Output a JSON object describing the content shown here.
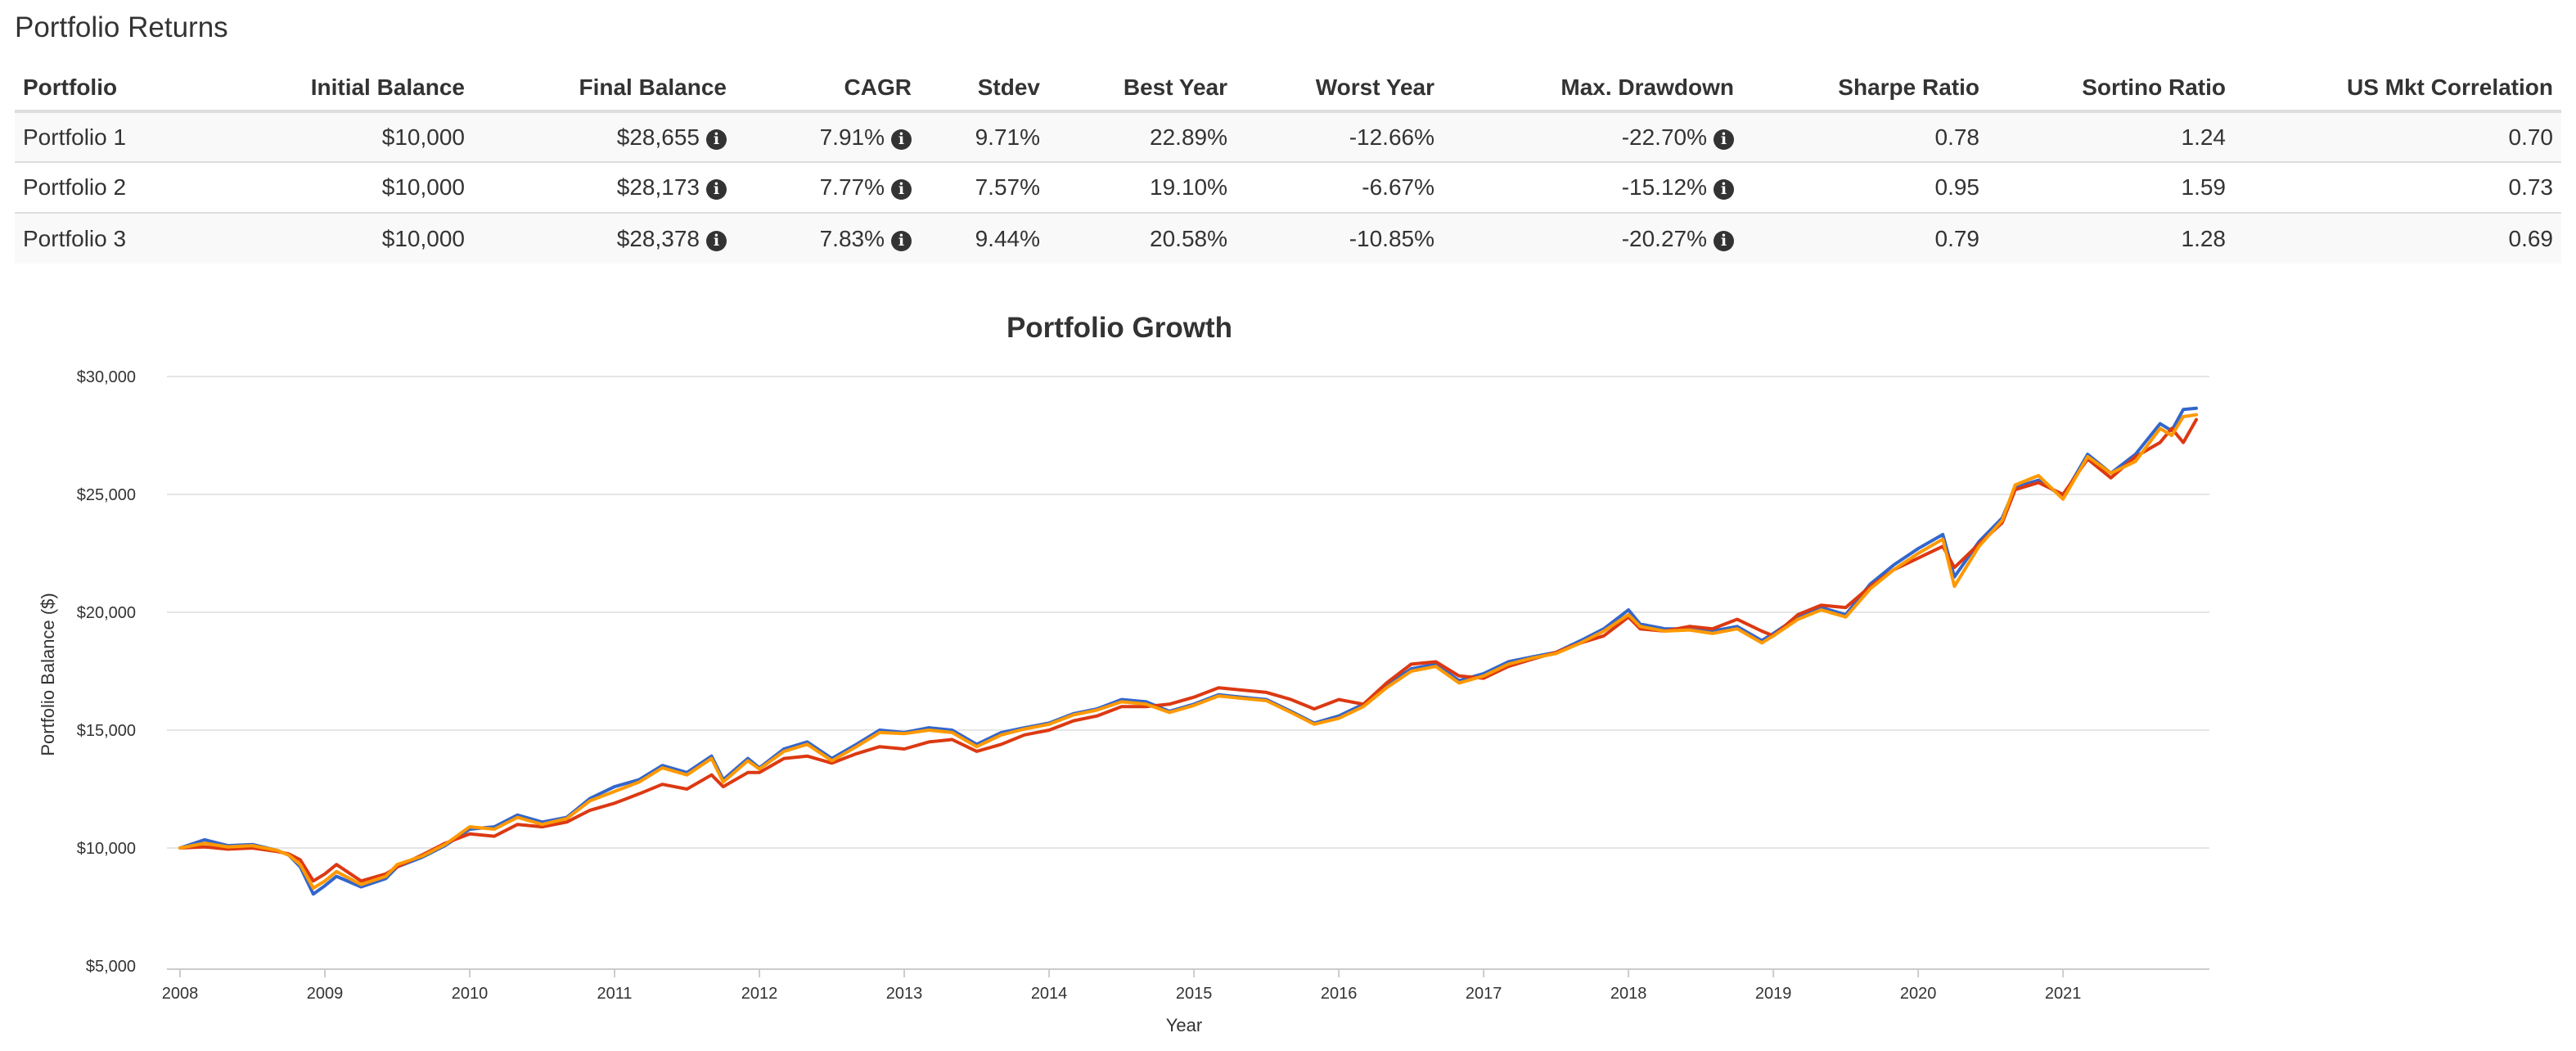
{
  "page": {
    "section_title": "Portfolio Returns"
  },
  "table": {
    "headers": [
      "Portfolio",
      "Initial Balance",
      "Final Balance",
      "CAGR",
      "Stdev",
      "Best Year",
      "Worst Year",
      "Max. Drawdown",
      "Sharpe Ratio",
      "Sortino Ratio",
      "US Mkt Correlation"
    ],
    "info_icon": "info-circle-icon",
    "rows": [
      {
        "portfolio": "Portfolio 1",
        "initial": "$10,000",
        "final": "$28,655",
        "cagr": "7.91%",
        "stdev": "9.71%",
        "best": "22.89%",
        "worst": "-12.66%",
        "drawdown": "-22.70%",
        "sharpe": "0.78",
        "sortino": "1.24",
        "corr": "0.70"
      },
      {
        "portfolio": "Portfolio 2",
        "initial": "$10,000",
        "final": "$28,173",
        "cagr": "7.77%",
        "stdev": "7.57%",
        "best": "19.10%",
        "worst": "-6.67%",
        "drawdown": "-15.12%",
        "sharpe": "0.95",
        "sortino": "1.59",
        "corr": "0.73"
      },
      {
        "portfolio": "Portfolio 3",
        "initial": "$10,000",
        "final": "$28,378",
        "cagr": "7.83%",
        "stdev": "9.44%",
        "best": "20.58%",
        "worst": "-10.85%",
        "drawdown": "-20.27%",
        "sharpe": "0.79",
        "sortino": "1.28",
        "corr": "0.69"
      }
    ]
  },
  "chart_data": {
    "type": "line",
    "title": "Portfolio Growth",
    "xlabel": "Year",
    "ylabel": "Portfolio Balance ($)",
    "x_ticks": [
      "2008",
      "2009",
      "2010",
      "2011",
      "2012",
      "2013",
      "2014",
      "2015",
      "2016",
      "2017",
      "2018",
      "2019",
      "2020",
      "2021"
    ],
    "y_ticks": [
      "$5,000",
      "$10,000",
      "$15,000",
      "$20,000",
      "$25,000",
      "$30,000"
    ],
    "xlim": [
      2008,
      2021.92
    ],
    "ylim": [
      5000,
      30000
    ],
    "grid": true,
    "legend": "none",
    "series": [
      {
        "color": "#3366cc",
        "points": [
          [
            2008.0,
            10000
          ],
          [
            2008.17,
            10350
          ],
          [
            2008.33,
            10100
          ],
          [
            2008.5,
            10150
          ],
          [
            2008.67,
            9900
          ],
          [
            2008.75,
            9700
          ],
          [
            2008.83,
            9200
          ],
          [
            2008.92,
            8050
          ],
          [
            2009.0,
            8400
          ],
          [
            2009.08,
            8800
          ],
          [
            2009.25,
            8350
          ],
          [
            2009.42,
            8700
          ],
          [
            2009.5,
            9200
          ],
          [
            2009.67,
            9600
          ],
          [
            2009.83,
            10100
          ],
          [
            2010.0,
            10800
          ],
          [
            2010.17,
            10900
          ],
          [
            2010.33,
            11400
          ],
          [
            2010.5,
            11100
          ],
          [
            2010.67,
            11300
          ],
          [
            2010.83,
            12100
          ],
          [
            2011.0,
            12600
          ],
          [
            2011.17,
            12900
          ],
          [
            2011.33,
            13500
          ],
          [
            2011.5,
            13200
          ],
          [
            2011.67,
            13900
          ],
          [
            2011.75,
            12900
          ],
          [
            2011.92,
            13800
          ],
          [
            2012.0,
            13400
          ],
          [
            2012.17,
            14200
          ],
          [
            2012.33,
            14500
          ],
          [
            2012.5,
            13800
          ],
          [
            2012.67,
            14400
          ],
          [
            2012.83,
            15000
          ],
          [
            2013.0,
            14900
          ],
          [
            2013.17,
            15100
          ],
          [
            2013.33,
            15000
          ],
          [
            2013.5,
            14400
          ],
          [
            2013.67,
            14900
          ],
          [
            2013.83,
            15100
          ],
          [
            2014.0,
            15300
          ],
          [
            2014.17,
            15700
          ],
          [
            2014.33,
            15900
          ],
          [
            2014.5,
            16300
          ],
          [
            2014.67,
            16200
          ],
          [
            2014.83,
            15800
          ],
          [
            2015.0,
            16100
          ],
          [
            2015.17,
            16500
          ],
          [
            2015.33,
            16400
          ],
          [
            2015.5,
            16300
          ],
          [
            2015.67,
            15800
          ],
          [
            2015.83,
            15300
          ],
          [
            2016.0,
            15600
          ],
          [
            2016.17,
            16100
          ],
          [
            2016.33,
            16900
          ],
          [
            2016.5,
            17600
          ],
          [
            2016.67,
            17800
          ],
          [
            2016.83,
            17100
          ],
          [
            2017.0,
            17400
          ],
          [
            2017.17,
            17900
          ],
          [
            2017.33,
            18100
          ],
          [
            2017.5,
            18300
          ],
          [
            2017.67,
            18800
          ],
          [
            2017.83,
            19300
          ],
          [
            2018.0,
            20100
          ],
          [
            2018.08,
            19500
          ],
          [
            2018.25,
            19300
          ],
          [
            2018.42,
            19300
          ],
          [
            2018.58,
            19200
          ],
          [
            2018.75,
            19400
          ],
          [
            2018.92,
            18800
          ],
          [
            2019.0,
            19100
          ],
          [
            2019.17,
            19800
          ],
          [
            2019.33,
            20200
          ],
          [
            2019.5,
            19900
          ],
          [
            2019.67,
            21200
          ],
          [
            2019.83,
            22000
          ],
          [
            2020.0,
            22700
          ],
          [
            2020.17,
            23300
          ],
          [
            2020.25,
            21500
          ],
          [
            2020.42,
            23000
          ],
          [
            2020.58,
            24000
          ],
          [
            2020.67,
            25300
          ],
          [
            2020.83,
            25600
          ],
          [
            2021.0,
            24900
          ],
          [
            2021.17,
            26700
          ],
          [
            2021.33,
            25900
          ],
          [
            2021.5,
            26700
          ],
          [
            2021.67,
            28000
          ],
          [
            2021.75,
            27700
          ],
          [
            2021.83,
            28600
          ],
          [
            2021.92,
            28655
          ]
        ]
      },
      {
        "color": "#dc3912",
        "points": [
          [
            2008.0,
            10000
          ],
          [
            2008.17,
            10050
          ],
          [
            2008.33,
            9950
          ],
          [
            2008.5,
            10000
          ],
          [
            2008.67,
            9850
          ],
          [
            2008.75,
            9750
          ],
          [
            2008.83,
            9500
          ],
          [
            2008.92,
            8600
          ],
          [
            2009.0,
            8900
          ],
          [
            2009.08,
            9300
          ],
          [
            2009.25,
            8600
          ],
          [
            2009.42,
            8900
          ],
          [
            2009.5,
            9200
          ],
          [
            2009.67,
            9700
          ],
          [
            2009.83,
            10200
          ],
          [
            2010.0,
            10600
          ],
          [
            2010.17,
            10500
          ],
          [
            2010.33,
            11000
          ],
          [
            2010.5,
            10900
          ],
          [
            2010.67,
            11100
          ],
          [
            2010.83,
            11600
          ],
          [
            2011.0,
            11900
          ],
          [
            2011.17,
            12300
          ],
          [
            2011.33,
            12700
          ],
          [
            2011.5,
            12500
          ],
          [
            2011.67,
            13100
          ],
          [
            2011.75,
            12600
          ],
          [
            2011.92,
            13200
          ],
          [
            2012.0,
            13200
          ],
          [
            2012.17,
            13800
          ],
          [
            2012.33,
            13900
          ],
          [
            2012.5,
            13600
          ],
          [
            2012.67,
            14000
          ],
          [
            2012.83,
            14300
          ],
          [
            2013.0,
            14200
          ],
          [
            2013.17,
            14500
          ],
          [
            2013.33,
            14600
          ],
          [
            2013.5,
            14100
          ],
          [
            2013.67,
            14400
          ],
          [
            2013.83,
            14800
          ],
          [
            2014.0,
            15000
          ],
          [
            2014.17,
            15400
          ],
          [
            2014.33,
            15600
          ],
          [
            2014.5,
            16000
          ],
          [
            2014.67,
            16000
          ],
          [
            2014.83,
            16100
          ],
          [
            2015.0,
            16400
          ],
          [
            2015.17,
            16800
          ],
          [
            2015.33,
            16700
          ],
          [
            2015.5,
            16600
          ],
          [
            2015.67,
            16300
          ],
          [
            2015.83,
            15900
          ],
          [
            2016.0,
            16300
          ],
          [
            2016.17,
            16100
          ],
          [
            2016.33,
            17000
          ],
          [
            2016.5,
            17800
          ],
          [
            2016.67,
            17900
          ],
          [
            2016.83,
            17300
          ],
          [
            2017.0,
            17200
          ],
          [
            2017.17,
            17700
          ],
          [
            2017.33,
            18000
          ],
          [
            2017.5,
            18300
          ],
          [
            2017.67,
            18700
          ],
          [
            2017.83,
            19000
          ],
          [
            2018.0,
            19800
          ],
          [
            2018.08,
            19300
          ],
          [
            2018.25,
            19200
          ],
          [
            2018.42,
            19400
          ],
          [
            2018.58,
            19300
          ],
          [
            2018.75,
            19700
          ],
          [
            2018.92,
            19200
          ],
          [
            2019.0,
            19000
          ],
          [
            2019.17,
            19900
          ],
          [
            2019.33,
            20300
          ],
          [
            2019.5,
            20200
          ],
          [
            2019.67,
            21100
          ],
          [
            2019.83,
            21800
          ],
          [
            2020.0,
            22300
          ],
          [
            2020.17,
            22800
          ],
          [
            2020.25,
            21900
          ],
          [
            2020.42,
            22900
          ],
          [
            2020.58,
            23800
          ],
          [
            2020.67,
            25200
          ],
          [
            2020.83,
            25500
          ],
          [
            2021.0,
            25000
          ],
          [
            2021.17,
            26500
          ],
          [
            2021.33,
            25700
          ],
          [
            2021.5,
            26600
          ],
          [
            2021.67,
            27200
          ],
          [
            2021.75,
            27800
          ],
          [
            2021.83,
            27200
          ],
          [
            2021.92,
            28173
          ]
        ]
      },
      {
        "color": "#ff9900",
        "points": [
          [
            2008.0,
            10000
          ],
          [
            2008.17,
            10200
          ],
          [
            2008.33,
            10050
          ],
          [
            2008.5,
            10100
          ],
          [
            2008.67,
            9900
          ],
          [
            2008.75,
            9700
          ],
          [
            2008.83,
            9300
          ],
          [
            2008.92,
            8300
          ],
          [
            2009.0,
            8600
          ],
          [
            2009.08,
            9000
          ],
          [
            2009.25,
            8450
          ],
          [
            2009.42,
            8800
          ],
          [
            2009.5,
            9300
          ],
          [
            2009.67,
            9650
          ],
          [
            2009.83,
            10150
          ],
          [
            2010.0,
            10900
          ],
          [
            2010.17,
            10800
          ],
          [
            2010.33,
            11300
          ],
          [
            2010.5,
            11000
          ],
          [
            2010.67,
            11250
          ],
          [
            2010.83,
            12000
          ],
          [
            2011.0,
            12400
          ],
          [
            2011.17,
            12800
          ],
          [
            2011.33,
            13400
          ],
          [
            2011.5,
            13100
          ],
          [
            2011.67,
            13800
          ],
          [
            2011.75,
            12800
          ],
          [
            2011.92,
            13700
          ],
          [
            2012.0,
            13350
          ],
          [
            2012.17,
            14100
          ],
          [
            2012.33,
            14400
          ],
          [
            2012.5,
            13700
          ],
          [
            2012.67,
            14300
          ],
          [
            2012.83,
            14900
          ],
          [
            2013.0,
            14850
          ],
          [
            2013.17,
            15000
          ],
          [
            2013.33,
            14900
          ],
          [
            2013.5,
            14300
          ],
          [
            2013.67,
            14800
          ],
          [
            2013.83,
            15050
          ],
          [
            2014.0,
            15250
          ],
          [
            2014.17,
            15650
          ],
          [
            2014.33,
            15850
          ],
          [
            2014.5,
            16200
          ],
          [
            2014.67,
            16100
          ],
          [
            2014.83,
            15750
          ],
          [
            2015.0,
            16050
          ],
          [
            2015.17,
            16450
          ],
          [
            2015.33,
            16350
          ],
          [
            2015.5,
            16250
          ],
          [
            2015.67,
            15750
          ],
          [
            2015.83,
            15250
          ],
          [
            2016.0,
            15500
          ],
          [
            2016.17,
            16000
          ],
          [
            2016.33,
            16800
          ],
          [
            2016.5,
            17500
          ],
          [
            2016.67,
            17700
          ],
          [
            2016.83,
            17000
          ],
          [
            2017.0,
            17300
          ],
          [
            2017.17,
            17800
          ],
          [
            2017.33,
            18050
          ],
          [
            2017.5,
            18250
          ],
          [
            2017.67,
            18700
          ],
          [
            2017.83,
            19200
          ],
          [
            2018.0,
            19900
          ],
          [
            2018.08,
            19400
          ],
          [
            2018.25,
            19200
          ],
          [
            2018.42,
            19250
          ],
          [
            2018.58,
            19100
          ],
          [
            2018.75,
            19300
          ],
          [
            2018.92,
            18700
          ],
          [
            2019.0,
            19000
          ],
          [
            2019.17,
            19700
          ],
          [
            2019.33,
            20100
          ],
          [
            2019.5,
            19800
          ],
          [
            2019.67,
            21000
          ],
          [
            2019.83,
            21800
          ],
          [
            2020.0,
            22500
          ],
          [
            2020.17,
            23100
          ],
          [
            2020.25,
            21100
          ],
          [
            2020.42,
            22800
          ],
          [
            2020.58,
            23900
          ],
          [
            2020.67,
            25400
          ],
          [
            2020.83,
            25800
          ],
          [
            2021.0,
            24800
          ],
          [
            2021.17,
            26600
          ],
          [
            2021.33,
            25900
          ],
          [
            2021.5,
            26400
          ],
          [
            2021.67,
            27800
          ],
          [
            2021.75,
            27500
          ],
          [
            2021.83,
            28300
          ],
          [
            2021.92,
            28378
          ]
        ]
      }
    ]
  }
}
